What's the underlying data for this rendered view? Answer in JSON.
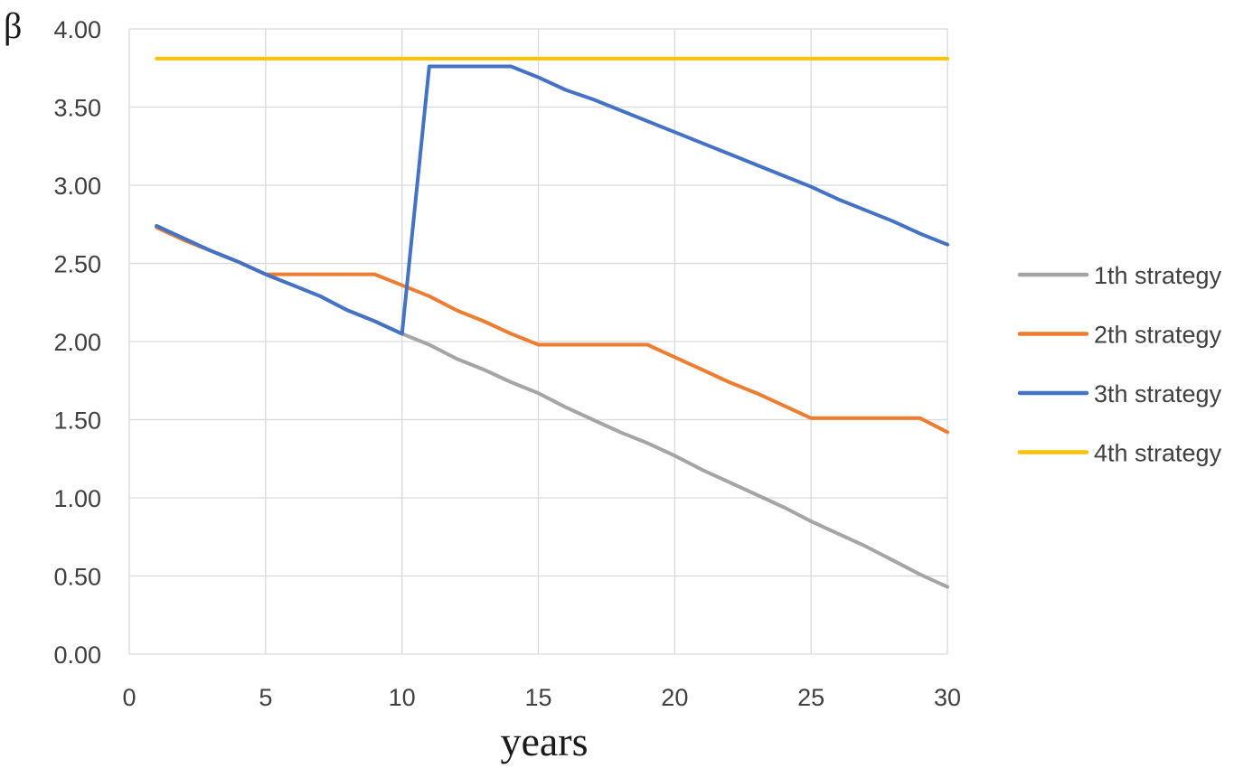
{
  "chart_data": {
    "type": "line",
    "xlabel": "years",
    "ylabel": "β",
    "xlim": [
      0,
      30
    ],
    "ylim": [
      0,
      4
    ],
    "x_ticks": [
      "0",
      "5",
      "10",
      "15",
      "20",
      "25",
      "30"
    ],
    "y_ticks": [
      "0.00",
      "0.50",
      "1.00",
      "1.50",
      "2.00",
      "2.50",
      "3.00",
      "3.50",
      "4.00"
    ],
    "grid": true,
    "legend_position": "right",
    "x": [
      1,
      2,
      3,
      4,
      5,
      6,
      7,
      8,
      9,
      10,
      11,
      12,
      13,
      14,
      15,
      16,
      17,
      18,
      19,
      20,
      21,
      22,
      23,
      24,
      25,
      26,
      27,
      28,
      29,
      30
    ],
    "series": [
      {
        "name": "1th strategy",
        "color": "#a5a5a5",
        "values": [
          2.73,
          2.65,
          2.58,
          2.51,
          2.43,
          2.36,
          2.29,
          2.2,
          2.13,
          2.05,
          1.98,
          1.89,
          1.82,
          1.74,
          1.67,
          1.58,
          1.5,
          1.42,
          1.35,
          1.27,
          1.18,
          1.1,
          1.02,
          0.94,
          0.85,
          0.77,
          0.69,
          0.6,
          0.51,
          0.43
        ]
      },
      {
        "name": "2th strategy",
        "color": "#ed7d31",
        "values": [
          2.73,
          2.65,
          2.58,
          2.51,
          2.43,
          2.43,
          2.43,
          2.43,
          2.43,
          2.36,
          2.29,
          2.2,
          2.13,
          2.05,
          1.98,
          1.98,
          1.98,
          1.98,
          1.98,
          1.9,
          1.82,
          1.74,
          1.67,
          1.59,
          1.51,
          1.51,
          1.51,
          1.51,
          1.51,
          1.42
        ]
      },
      {
        "name": "3th strategy",
        "color": "#4472c4",
        "values": [
          2.74,
          2.66,
          2.58,
          2.51,
          2.43,
          2.36,
          2.29,
          2.2,
          2.13,
          2.05,
          3.76,
          3.76,
          3.76,
          3.76,
          3.69,
          3.61,
          3.55,
          3.48,
          3.41,
          3.34,
          3.27,
          3.2,
          3.13,
          3.06,
          2.99,
          2.91,
          2.84,
          2.77,
          2.69,
          2.62
        ]
      },
      {
        "name": "4th strategy",
        "color": "#ffc000",
        "values": [
          3.81,
          3.81,
          3.81,
          3.81,
          3.81,
          3.81,
          3.81,
          3.81,
          3.81,
          3.81,
          3.81,
          3.81,
          3.81,
          3.81,
          3.81,
          3.81,
          3.81,
          3.81,
          3.81,
          3.81,
          3.81,
          3.81,
          3.81,
          3.81,
          3.81,
          3.81,
          3.81,
          3.81,
          3.81,
          3.81
        ]
      }
    ]
  }
}
